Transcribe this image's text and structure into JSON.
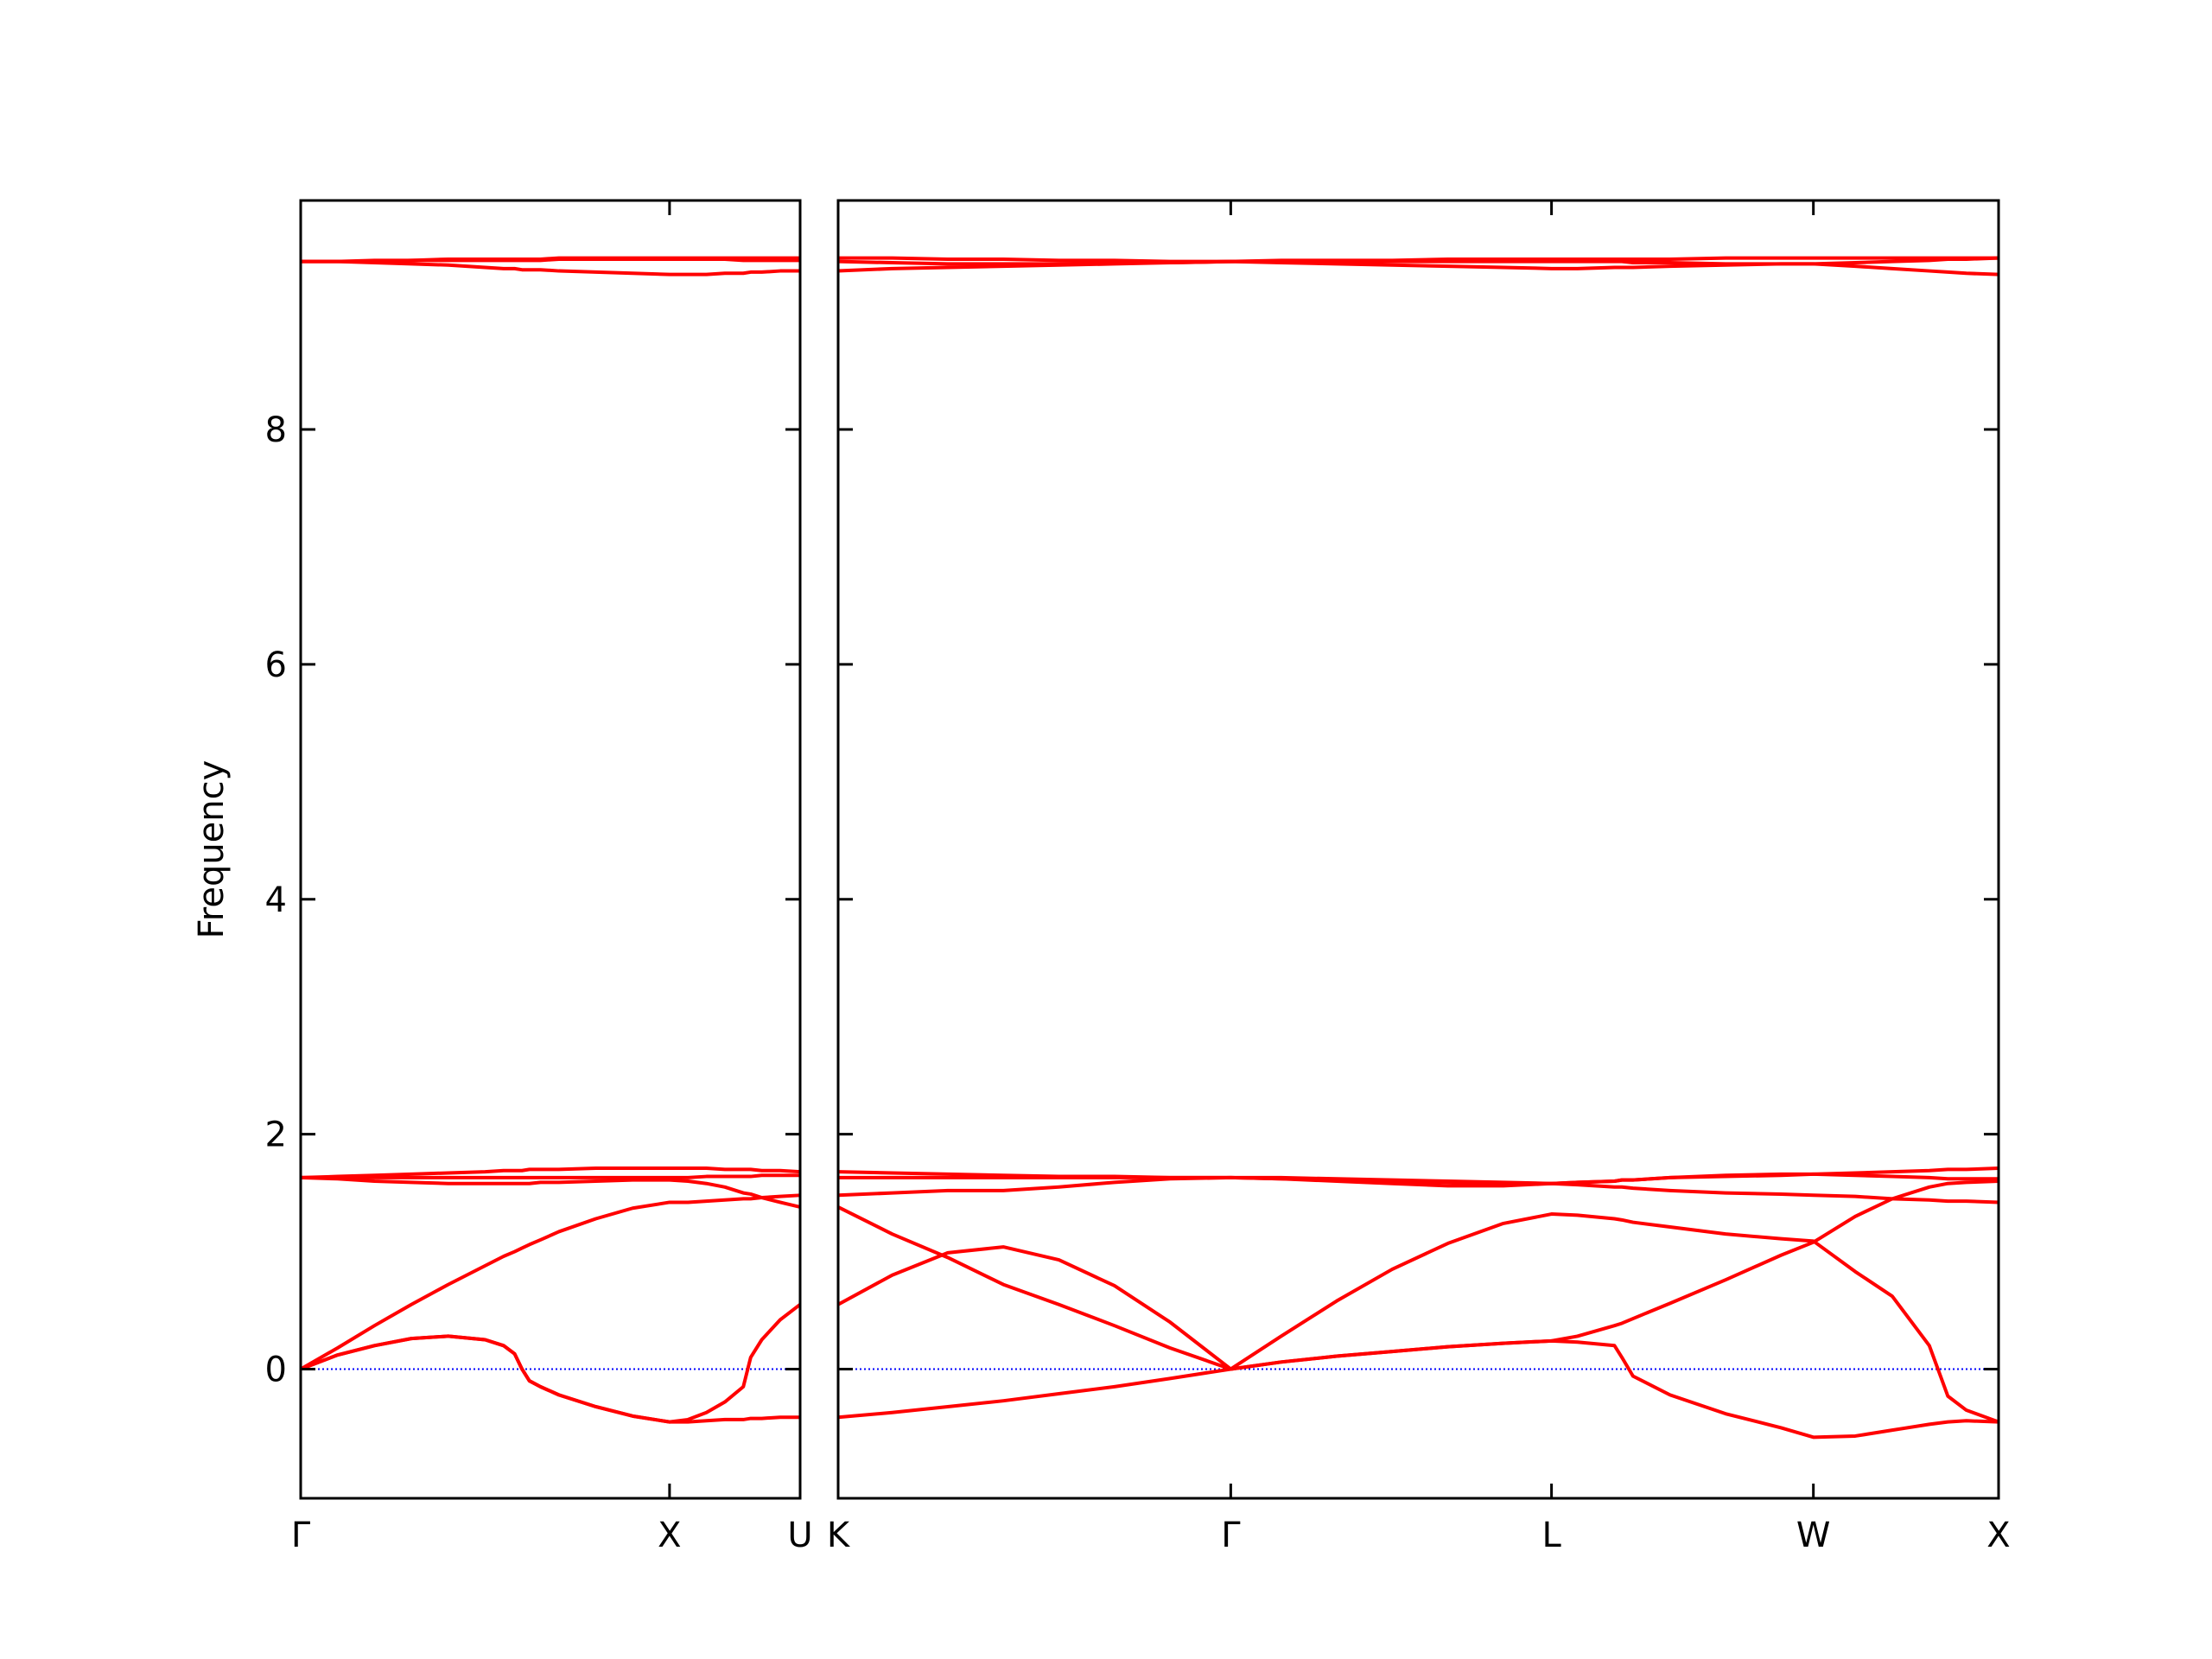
{
  "chart_data": [
    {
      "type": "line",
      "ylabel": "Frequency",
      "ytick_labels": true,
      "zero_line_color": "#0000ff",
      "xlim": [
        0,
        1.354
      ],
      "ylim": [
        -1.1,
        9.95
      ],
      "yticks": [
        0,
        2,
        4,
        6,
        8
      ],
      "xticks": [
        {
          "value": 0,
          "label": "Γ"
        },
        {
          "value": 1.0,
          "label": "X"
        },
        {
          "value": 1.354,
          "label": "U"
        }
      ],
      "x": [
        0,
        0.1,
        0.2,
        0.3,
        0.4,
        0.5,
        0.55,
        0.58,
        0.6,
        0.62,
        0.65,
        0.7,
        0.8,
        0.9,
        1.0,
        1.05,
        1.1,
        1.15,
        1.2,
        1.22,
        1.25,
        1.3,
        1.354
      ],
      "series": [
        {
          "color": "#ff0000",
          "values": [
            0,
            0.12,
            0.2,
            0.26,
            0.28,
            0.25,
            0.2,
            0.13,
            0.0,
            -0.1,
            -0.15,
            -0.22,
            -0.32,
            -0.4,
            -0.45,
            -0.45,
            -0.44,
            -0.43,
            -0.43,
            -0.42,
            -0.42,
            -0.41,
            -0.41
          ]
        },
        {
          "color": "#ff0000",
          "values": [
            0,
            0.12,
            0.2,
            0.26,
            0.28,
            0.25,
            0.2,
            0.13,
            0.0,
            -0.1,
            -0.15,
            -0.22,
            -0.32,
            -0.4,
            -0.45,
            -0.43,
            -0.37,
            -0.28,
            -0.15,
            0.1,
            0.25,
            0.42,
            0.55
          ]
        },
        {
          "color": "#ff0000",
          "values": [
            0,
            0.18,
            0.37,
            0.55,
            0.72,
            0.88,
            0.96,
            1.0,
            1.03,
            1.06,
            1.1,
            1.17,
            1.28,
            1.37,
            1.42,
            1.42,
            1.43,
            1.44,
            1.45,
            1.45,
            1.46,
            1.47,
            1.48
          ]
        },
        {
          "color": "#ff0000",
          "values": [
            1.63,
            1.62,
            1.6,
            1.59,
            1.58,
            1.58,
            1.58,
            1.58,
            1.58,
            1.58,
            1.59,
            1.59,
            1.6,
            1.61,
            1.61,
            1.6,
            1.58,
            1.55,
            1.5,
            1.49,
            1.46,
            1.42,
            1.38
          ]
        },
        {
          "color": "#ff0000",
          "values": [
            1.63,
            1.63,
            1.63,
            1.63,
            1.63,
            1.63,
            1.63,
            1.63,
            1.63,
            1.63,
            1.63,
            1.63,
            1.63,
            1.63,
            1.63,
            1.63,
            1.64,
            1.64,
            1.64,
            1.64,
            1.65,
            1.65,
            1.65
          ]
        },
        {
          "color": "#ff0000",
          "values": [
            1.63,
            1.64,
            1.65,
            1.66,
            1.67,
            1.68,
            1.69,
            1.69,
            1.69,
            1.7,
            1.7,
            1.7,
            1.71,
            1.71,
            1.71,
            1.71,
            1.71,
            1.7,
            1.7,
            1.7,
            1.69,
            1.69,
            1.68
          ]
        },
        {
          "color": "#ff0000",
          "values": [
            9.43,
            9.43,
            9.42,
            9.41,
            9.4,
            9.38,
            9.37,
            9.37,
            9.36,
            9.36,
            9.36,
            9.35,
            9.34,
            9.33,
            9.32,
            9.32,
            9.32,
            9.33,
            9.33,
            9.34,
            9.34,
            9.35,
            9.35
          ]
        },
        {
          "color": "#ff0000",
          "values": [
            9.43,
            9.43,
            9.43,
            9.44,
            9.44,
            9.44,
            9.44,
            9.44,
            9.44,
            9.44,
            9.44,
            9.45,
            9.45,
            9.45,
            9.45,
            9.45,
            9.45,
            9.45,
            9.44,
            9.44,
            9.44,
            9.44,
            9.44
          ]
        },
        {
          "color": "#ff0000",
          "values": [
            9.43,
            9.43,
            9.44,
            9.44,
            9.45,
            9.45,
            9.45,
            9.45,
            9.45,
            9.45,
            9.45,
            9.46,
            9.46,
            9.46,
            9.46,
            9.46,
            9.46,
            9.46,
            9.46,
            9.46,
            9.46,
            9.46,
            9.46
          ]
        }
      ]
    },
    {
      "type": "line",
      "ytick_labels": false,
      "zero_line_color": "#0000ff",
      "xlim": [
        1.354,
        4.487
      ],
      "ylim": [
        -1.1,
        9.95
      ],
      "yticks": [
        0,
        2,
        4,
        6,
        8
      ],
      "xticks": [
        {
          "value": 1.354,
          "label": "K"
        },
        {
          "value": 2.414,
          "label": "Γ"
        },
        {
          "value": 3.28,
          "label": "L"
        },
        {
          "value": 3.987,
          "label": "W"
        },
        {
          "value": 4.487,
          "label": "X"
        }
      ],
      "x": [
        1.354,
        1.5,
        1.65,
        1.8,
        1.95,
        2.1,
        2.25,
        2.414,
        2.55,
        2.7,
        2.85,
        3.0,
        3.15,
        3.28,
        3.35,
        3.45,
        3.47,
        3.5,
        3.6,
        3.75,
        3.9,
        3.987,
        4.1,
        4.2,
        4.3,
        4.35,
        4.4,
        4.487
      ],
      "series": [
        {
          "color": "#ff0000",
          "values": [
            -0.41,
            -0.37,
            -0.32,
            -0.27,
            -0.21,
            -0.15,
            -0.08,
            0,
            0.06,
            0.11,
            0.15,
            0.19,
            0.22,
            0.24,
            0.23,
            0.2,
            0.1,
            -0.06,
            -0.22,
            -0.38,
            -0.5,
            -0.58,
            -0.57,
            -0.52,
            -0.47,
            -0.45,
            -0.44,
            -0.45
          ]
        },
        {
          "color": "#ff0000",
          "values": [
            0.55,
            0.8,
            0.99,
            1.04,
            0.93,
            0.71,
            0.4,
            0,
            0.06,
            0.11,
            0.15,
            0.19,
            0.22,
            0.24,
            0.28,
            0.37,
            0.39,
            0.43,
            0.56,
            0.76,
            0.97,
            1.08,
            1.3,
            1.45,
            1.55,
            1.58,
            1.59,
            1.6
          ]
        },
        {
          "color": "#ff0000",
          "values": [
            1.38,
            1.15,
            0.95,
            0.72,
            0.55,
            0.37,
            0.18,
            0,
            0.28,
            0.58,
            0.85,
            1.07,
            1.24,
            1.32,
            1.31,
            1.28,
            1.27,
            1.25,
            1.21,
            1.15,
            1.11,
            1.09,
            0.83,
            0.62,
            0.2,
            -0.23,
            -0.35,
            -0.45
          ]
        },
        {
          "color": "#ff0000",
          "values": [
            1.48,
            1.5,
            1.52,
            1.52,
            1.55,
            1.59,
            1.62,
            1.63,
            1.62,
            1.61,
            1.6,
            1.59,
            1.58,
            1.58,
            1.57,
            1.55,
            1.55,
            1.54,
            1.52,
            1.5,
            1.49,
            1.48,
            1.47,
            1.45,
            1.44,
            1.43,
            1.43,
            1.42
          ]
        },
        {
          "color": "#ff0000",
          "values": [
            1.63,
            1.63,
            1.63,
            1.63,
            1.63,
            1.63,
            1.63,
            1.63,
            1.62,
            1.6,
            1.58,
            1.56,
            1.56,
            1.58,
            1.59,
            1.6,
            1.61,
            1.61,
            1.63,
            1.65,
            1.66,
            1.66,
            1.65,
            1.64,
            1.63,
            1.62,
            1.62,
            1.62
          ]
        },
        {
          "color": "#ff0000",
          "values": [
            1.68,
            1.67,
            1.66,
            1.65,
            1.64,
            1.64,
            1.63,
            1.63,
            1.63,
            1.62,
            1.61,
            1.6,
            1.59,
            1.58,
            1.59,
            1.6,
            1.61,
            1.61,
            1.63,
            1.64,
            1.65,
            1.66,
            1.67,
            1.68,
            1.69,
            1.7,
            1.7,
            1.71
          ]
        },
        {
          "color": "#ff0000",
          "values": [
            9.35,
            9.37,
            9.38,
            9.39,
            9.4,
            9.41,
            9.42,
            9.43,
            9.42,
            9.41,
            9.4,
            9.39,
            9.38,
            9.37,
            9.37,
            9.38,
            9.38,
            9.38,
            9.39,
            9.4,
            9.41,
            9.41,
            9.39,
            9.37,
            9.35,
            9.34,
            9.33,
            9.32
          ]
        },
        {
          "color": "#ff0000",
          "values": [
            9.43,
            9.42,
            9.41,
            9.41,
            9.41,
            9.42,
            9.42,
            9.43,
            9.43,
            9.43,
            9.43,
            9.43,
            9.43,
            9.43,
            9.43,
            9.43,
            9.43,
            9.42,
            9.42,
            9.41,
            9.41,
            9.41,
            9.42,
            9.43,
            9.44,
            9.45,
            9.45,
            9.46
          ]
        },
        {
          "color": "#ff0000",
          "values": [
            9.46,
            9.46,
            9.45,
            9.45,
            9.44,
            9.44,
            9.43,
            9.43,
            9.44,
            9.44,
            9.44,
            9.45,
            9.45,
            9.45,
            9.45,
            9.45,
            9.45,
            9.45,
            9.45,
            9.46,
            9.46,
            9.46,
            9.46,
            9.46,
            9.46,
            9.46,
            9.46,
            9.46
          ]
        }
      ]
    }
  ]
}
